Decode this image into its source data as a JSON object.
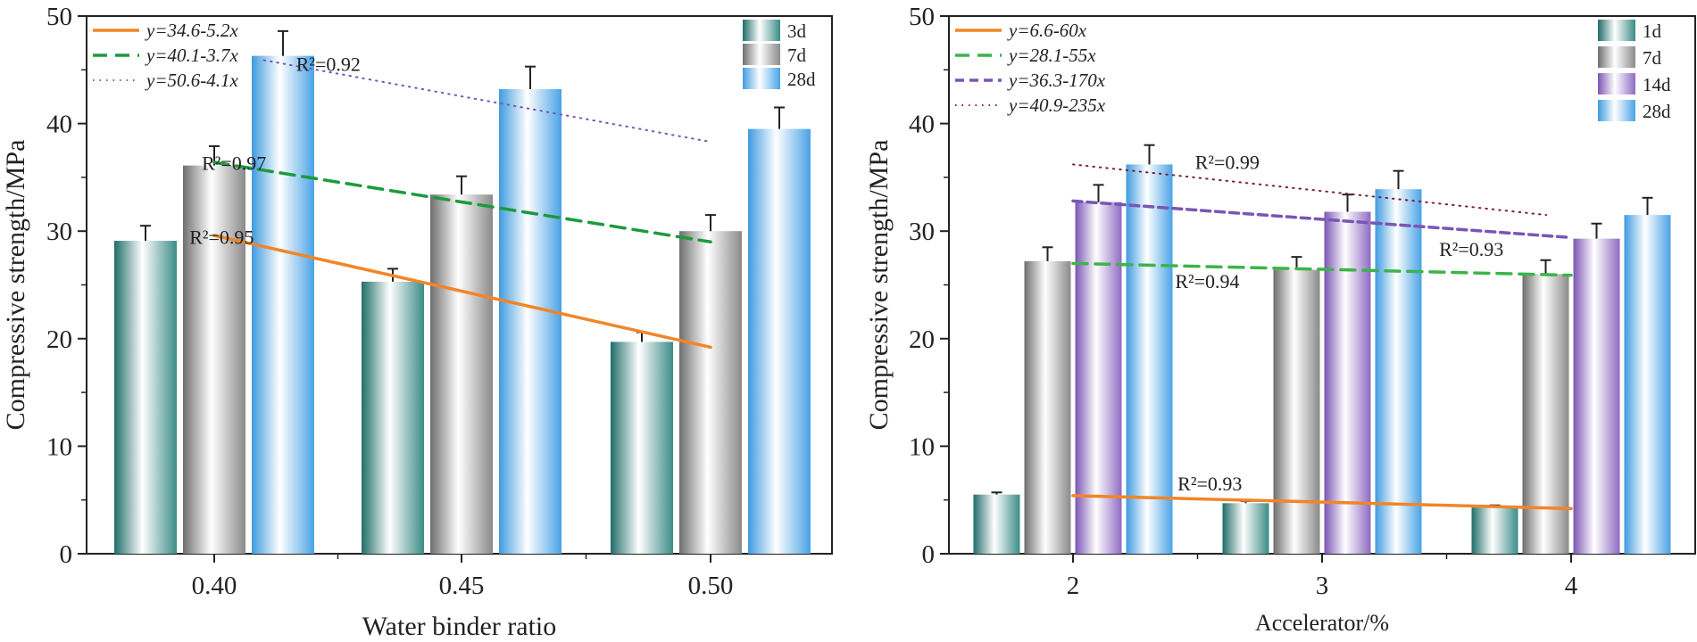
{
  "chart_data": [
    {
      "type": "bar",
      "title": "",
      "xlabel": "Water binder ratio",
      "ylabel": "Compressive strength/MPa",
      "ylim": [
        0,
        50
      ],
      "yticks": [
        0,
        10,
        20,
        30,
        40,
        50
      ],
      "categories": [
        "0.40",
        "0.45",
        "0.50"
      ],
      "x": [
        0.4,
        0.45,
        0.5
      ],
      "series": [
        {
          "name": "3d",
          "color": "#2e7f7a",
          "style": "teal",
          "values": [
            29.1,
            25.3,
            19.7
          ],
          "errors": [
            1.4,
            1.2,
            0.9
          ]
        },
        {
          "name": "7d",
          "color": "#8c8c8c",
          "style": "gray",
          "values": [
            36.1,
            33.4,
            30.0
          ],
          "errors": [
            1.8,
            1.7,
            1.5
          ]
        },
        {
          "name": "28d",
          "color": "#3f9be0",
          "style": "blue",
          "values": [
            46.3,
            43.2,
            39.5
          ],
          "errors": [
            2.3,
            2.1,
            2.0
          ]
        }
      ],
      "fits": [
        {
          "label": "y=34.6-5.2x",
          "r2": "R²=0.95",
          "color": "#f28528",
          "dash": "solid",
          "from": [
            0.4,
            29.6
          ],
          "to": [
            0.5,
            19.2
          ],
          "annot_at": [
            0.395,
            28.8
          ]
        },
        {
          "label": "y=40.1-3.7x",
          "r2": "R²=0.97",
          "color": "#1c9a3e",
          "dash": "dashed",
          "from": [
            0.4,
            36.4
          ],
          "to": [
            0.5,
            29.0
          ],
          "annot_at": [
            0.3975,
            35.7
          ]
        },
        {
          "label": "y=50.6-4.1x",
          "r2": "R²=0.92",
          "color": "#7b55b5",
          "dash": "dotted",
          "from": [
            0.41,
            45.9
          ],
          "to": [
            0.5,
            38.3
          ],
          "annot_at": [
            0.4165,
            44.9
          ]
        }
      ],
      "legend": {
        "placement": "top-left and top-right"
      }
    },
    {
      "type": "bar",
      "title": "",
      "xlabel": "Accelerator/%",
      "ylabel": "Compressive strength/MPa",
      "ylim": [
        0,
        50
      ],
      "yticks": [
        0,
        10,
        20,
        30,
        40,
        50
      ],
      "categories": [
        "2",
        "3",
        "4"
      ],
      "x": [
        2,
        3,
        4
      ],
      "series": [
        {
          "name": "1d",
          "color": "#2e7f7a",
          "style": "teal",
          "values": [
            5.5,
            4.7,
            4.3
          ],
          "errors": [
            0.2,
            0.2,
            0.2
          ]
        },
        {
          "name": "7d",
          "color": "#8c8c8c",
          "style": "gray",
          "values": [
            27.2,
            26.4,
            26.0
          ],
          "errors": [
            1.3,
            1.2,
            1.3
          ]
        },
        {
          "name": "14d",
          "color": "#8a63b8",
          "style": "purple",
          "values": [
            32.7,
            31.8,
            29.3
          ],
          "errors": [
            1.6,
            1.6,
            1.4
          ]
        },
        {
          "name": "28d",
          "color": "#3f9be0",
          "style": "blue",
          "values": [
            36.2,
            33.9,
            31.5
          ],
          "errors": [
            1.8,
            1.7,
            1.6
          ]
        }
      ],
      "fits": [
        {
          "label": "y=6.6-60x",
          "r2": "R²=0.93",
          "color": "#f28528",
          "dash": "solid",
          "from": [
            2,
            5.4
          ],
          "to": [
            4,
            4.2
          ],
          "annot_at": [
            2.42,
            5.9
          ]
        },
        {
          "label": "y=28.1-55x",
          "r2": "R²=0.94",
          "color": "#3cb44a",
          "dash": "dashed",
          "from": [
            2,
            27.0
          ],
          "to": [
            4,
            25.9
          ],
          "annot_at": [
            2.41,
            24.7
          ]
        },
        {
          "label": "y=36.3-170x",
          "r2": "R²=0.93",
          "color": "#7b55b5",
          "dash": "dashed-short",
          "from": [
            2,
            32.8
          ],
          "to": [
            4,
            29.4
          ],
          "annot_at": [
            3.47,
            27.7
          ]
        },
        {
          "label": "y=40.9-235x",
          "r2": "R²=0.99",
          "color": "#7a1f3a",
          "dash": "dotted",
          "from": [
            2,
            36.2
          ],
          "to": [
            3.9,
            31.5
          ],
          "annot_at": [
            2.49,
            35.8
          ]
        }
      ],
      "legend": {
        "placement": "top-left and top-right"
      }
    }
  ]
}
